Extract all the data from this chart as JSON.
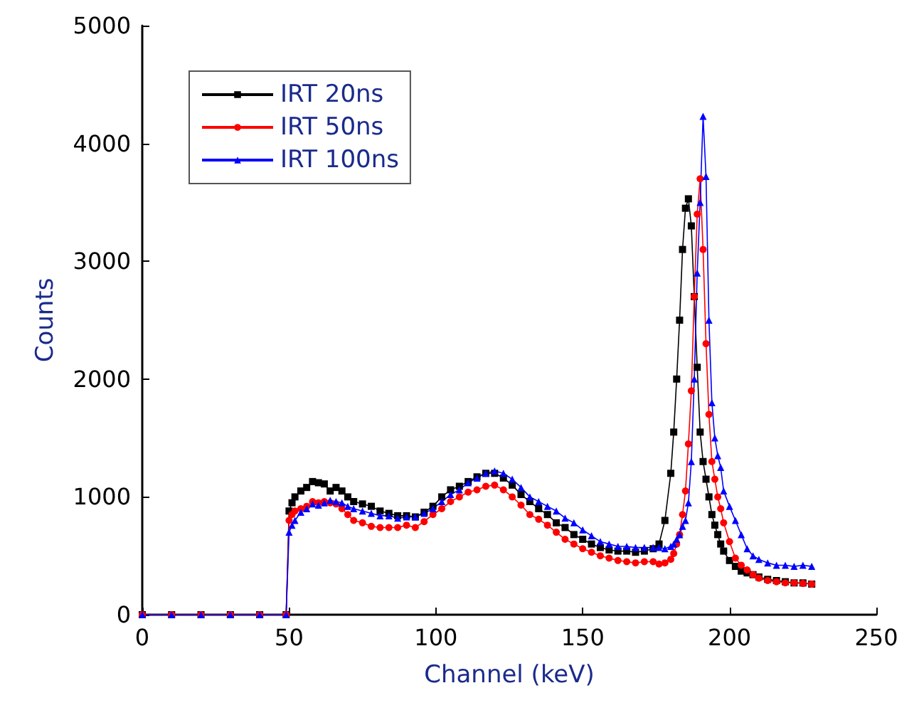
{
  "chart_data": {
    "type": "line",
    "xlabel": "Channel (keV)",
    "ylabel": "Counts",
    "x": [
      0,
      10,
      20,
      30,
      40,
      49,
      50,
      51,
      52,
      54,
      56,
      58,
      60,
      62,
      64,
      66,
      68,
      70,
      72,
      75,
      78,
      81,
      84,
      87,
      90,
      93,
      96,
      99,
      102,
      105,
      108,
      111,
      114,
      117,
      120,
      123,
      126,
      129,
      132,
      135,
      138,
      141,
      144,
      147,
      150,
      153,
      156,
      159,
      162,
      165,
      168,
      171,
      174,
      176,
      178,
      180,
      181,
      182,
      183,
      184,
      185,
      186,
      187,
      188,
      189,
      190,
      191,
      192,
      193,
      194,
      195,
      196,
      197,
      198,
      200,
      202,
      204,
      206,
      208,
      210,
      213,
      216,
      219,
      222,
      225,
      228
    ],
    "series": [
      {
        "name": "IRT 20ns",
        "color": "#000000",
        "marker": "square",
        "values": [
          0,
          0,
          0,
          0,
          0,
          0,
          880,
          950,
          1000,
          1050,
          1080,
          1130,
          1120,
          1110,
          1050,
          1080,
          1050,
          1000,
          960,
          940,
          920,
          880,
          860,
          840,
          840,
          830,
          870,
          920,
          1000,
          1060,
          1090,
          1130,
          1170,
          1200,
          1200,
          1160,
          1100,
          1020,
          960,
          900,
          850,
          780,
          740,
          680,
          640,
          600,
          570,
          550,
          540,
          540,
          530,
          540,
          560,
          600,
          800,
          1200,
          1550,
          2000,
          2500,
          3100,
          3450,
          3530,
          3300,
          2700,
          2100,
          1550,
          1300,
          1150,
          1000,
          850,
          760,
          680,
          600,
          540,
          460,
          410,
          370,
          355,
          340,
          320,
          300,
          290,
          280,
          270,
          270,
          260
        ]
      },
      {
        "name": "IRT 50ns",
        "color": "#ff0000",
        "marker": "circle",
        "values": [
          0,
          0,
          0,
          0,
          0,
          0,
          800,
          850,
          880,
          900,
          920,
          960,
          950,
          960,
          950,
          940,
          900,
          850,
          800,
          780,
          750,
          740,
          740,
          740,
          760,
          740,
          790,
          850,
          900,
          960,
          1000,
          1040,
          1060,
          1090,
          1100,
          1060,
          1000,
          930,
          850,
          810,
          760,
          700,
          640,
          600,
          560,
          530,
          500,
          480,
          460,
          450,
          440,
          450,
          450,
          430,
          440,
          470,
          520,
          600,
          680,
          850,
          1050,
          1450,
          1900,
          2700,
          3400,
          3700,
          3100,
          2300,
          1700,
          1300,
          1150,
          1000,
          900,
          780,
          620,
          480,
          420,
          380,
          340,
          310,
          290,
          280,
          270,
          270,
          265,
          260
        ]
      },
      {
        "name": "IRT 100ns",
        "color": "#0000ff",
        "marker": "triangle",
        "values": [
          0,
          0,
          0,
          0,
          0,
          0,
          700,
          760,
          800,
          870,
          900,
          940,
          930,
          950,
          970,
          960,
          950,
          920,
          900,
          880,
          860,
          840,
          840,
          820,
          830,
          830,
          860,
          900,
          960,
          1020,
          1060,
          1120,
          1160,
          1200,
          1220,
          1200,
          1150,
          1080,
          1000,
          960,
          920,
          880,
          820,
          780,
          720,
          670,
          620,
          600,
          580,
          580,
          570,
          570,
          570,
          570,
          560,
          580,
          600,
          640,
          680,
          750,
          800,
          950,
          1300,
          2000,
          2900,
          3500,
          4230,
          3720,
          2500,
          1800,
          1500,
          1350,
          1250,
          1050,
          920,
          800,
          680,
          560,
          500,
          470,
          440,
          420,
          420,
          410,
          420,
          410
        ]
      }
    ],
    "xlim": [
      0,
      250
    ],
    "xticks": [
      0,
      50,
      100,
      150,
      200,
      250
    ],
    "ylim": [
      0,
      5000
    ],
    "yticks": [
      0,
      1000,
      2000,
      3000,
      4000,
      5000
    ],
    "legend": "top left",
    "grid": false,
    "line_style": "solid"
  }
}
